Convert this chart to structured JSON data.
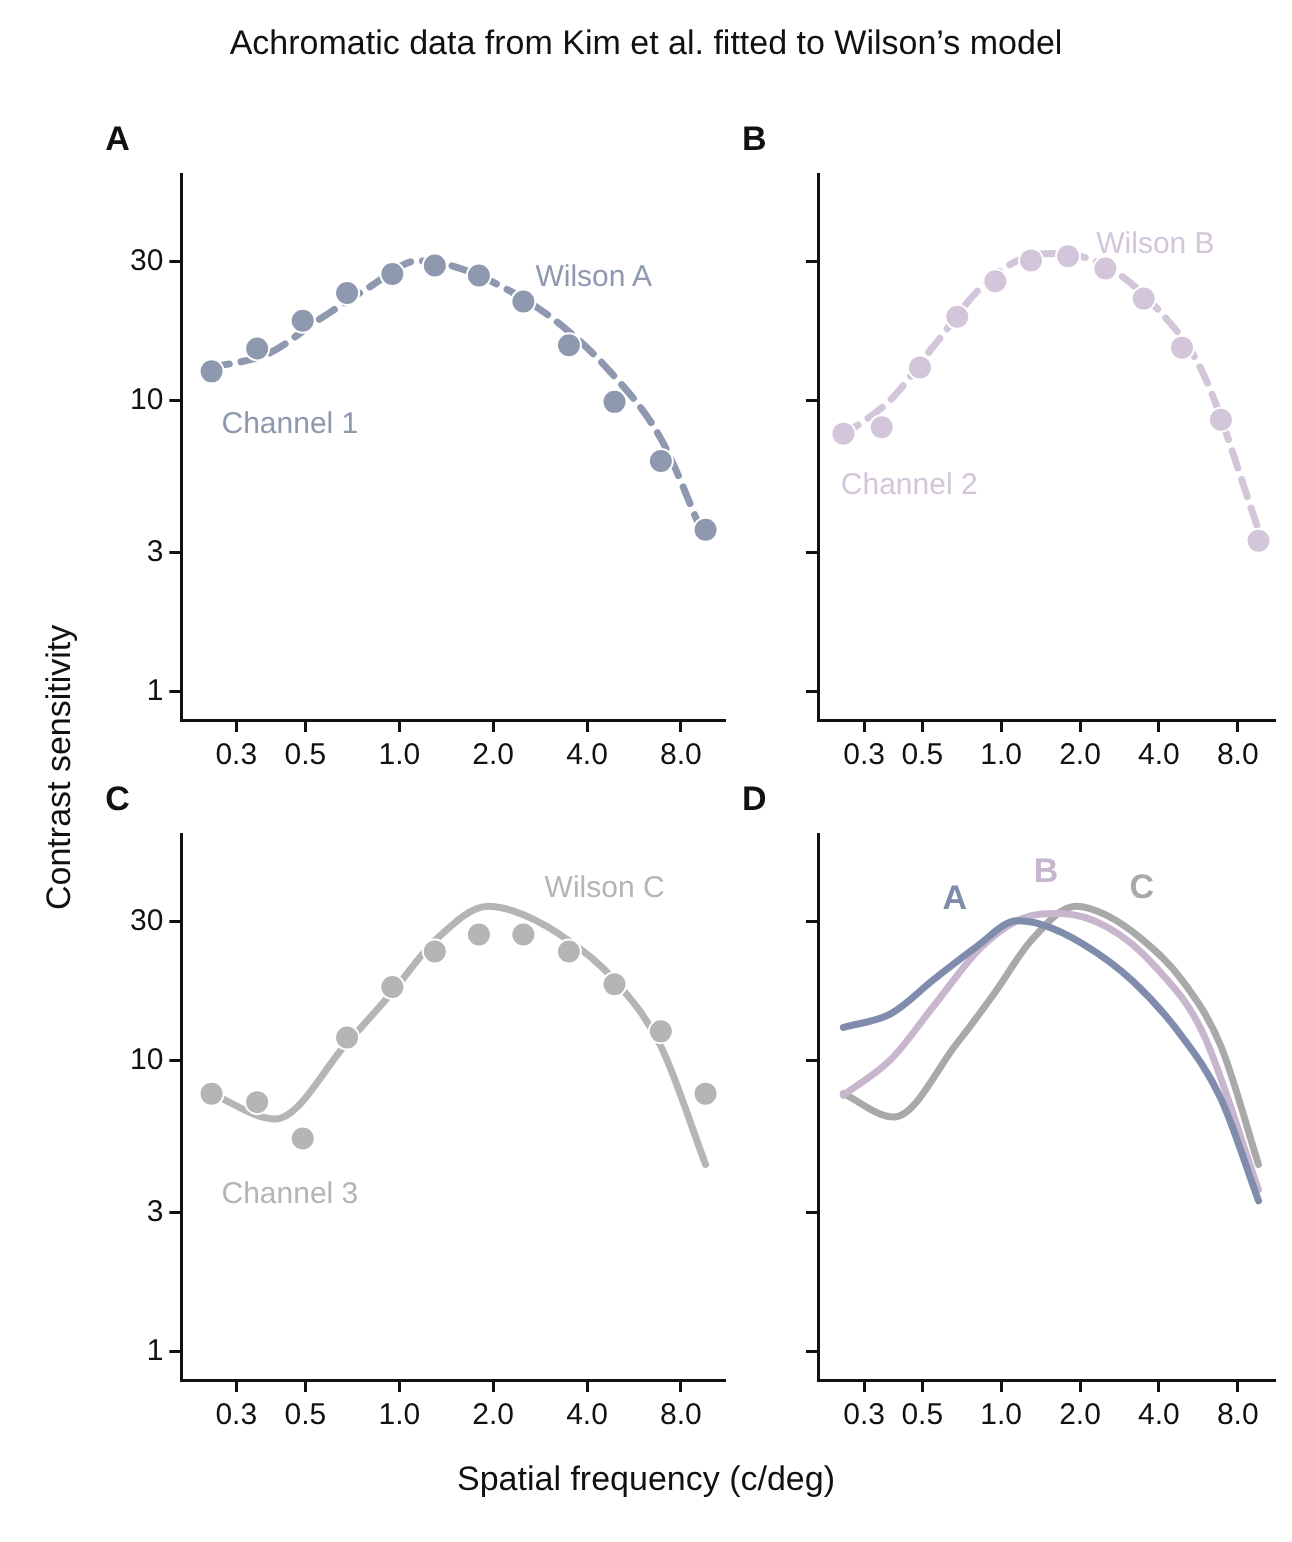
{
  "chart_data": [
    {
      "type": "line",
      "title": "A",
      "ylabel": "Contrast sensitivity",
      "annotations": [
        "Achromatic data from Kim et al. fitted to Wilson’s model"
      ],
      "log": "xy",
      "grid": false,
      "legend": false,
      "xlim": [
        0.2,
        11
      ],
      "ylim": [
        0.8,
        60
      ],
      "xticks": [
        {
          "value": 0.3,
          "label": "0.3"
        },
        {
          "value": 0.5,
          "label": "0.5"
        },
        {
          "value": 1,
          "label": "1.0"
        },
        {
          "value": 2,
          "label": "2.0"
        },
        {
          "value": 4,
          "label": "4.0"
        },
        {
          "value": 8,
          "label": "8.0"
        }
      ],
      "yticks": [
        1,
        3,
        10,
        30
      ],
      "series": [
        {
          "name": "Wilson A",
          "type": "line",
          "line_style": "dashed",
          "marker": "none",
          "color": "#8e99b0",
          "x": [
            0.25,
            0.38,
            0.55,
            0.8,
            1.15,
            1.43,
            2.06,
            3.15,
            4.8,
            6.9,
            9.6
          ],
          "values": [
            13.0,
            14.5,
            18.9,
            24.5,
            30.2,
            29.3,
            25.1,
            18.9,
            12.4,
            7.4,
            3.3
          ]
        },
        {
          "name": "Channel 1",
          "type": "scatter",
          "marker": "circle",
          "color": "#8e99b0",
          "x": [
            0.25,
            0.35,
            0.49,
            0.68,
            0.95,
            1.3,
            1.8,
            2.5,
            3.5,
            4.9,
            6.9,
            9.6
          ],
          "values": [
            12.6,
            15.1,
            18.8,
            23.4,
            27.2,
            29.1,
            26.9,
            21.9,
            15.5,
            9.9,
            6.2,
            3.6
          ]
        }
      ]
    },
    {
      "type": "line",
      "title": "B",
      "log": "xy",
      "grid": false,
      "legend": false,
      "tick_labels": "x",
      "xlim": [
        0.2,
        11
      ],
      "ylim": [
        0.8,
        60
      ],
      "xticks": [
        {
          "value": 0.3,
          "label": "0.3"
        },
        {
          "value": 0.5,
          "label": "0.5"
        },
        {
          "value": 1,
          "label": "1.0"
        },
        {
          "value": 2,
          "label": "2.0"
        },
        {
          "value": 4,
          "label": "4.0"
        },
        {
          "value": 8,
          "label": "8.0"
        }
      ],
      "yticks": [
        1,
        3,
        10,
        30
      ],
      "series": [
        {
          "name": "Wilson B",
          "type": "line",
          "line_style": "dashed",
          "marker": "none",
          "color": "#d3c6da",
          "x": [
            0.25,
            0.38,
            0.55,
            0.84,
            1.22,
            1.67,
            2.55,
            3.9,
            5.9,
            9.6
          ],
          "values": [
            7.6,
            10.1,
            15.3,
            24.5,
            30.9,
            32.0,
            28.7,
            20.9,
            12.4,
            3.6
          ]
        },
        {
          "name": "Channel 2",
          "type": "scatter",
          "marker": "circle",
          "color": "#d3c6da",
          "x": [
            0.25,
            0.35,
            0.49,
            0.68,
            0.95,
            1.3,
            1.8,
            2.5,
            3.5,
            4.9,
            6.9,
            9.6
          ],
          "values": [
            7.7,
            8.1,
            13.0,
            19.4,
            25.7,
            30.3,
            31.3,
            28.4,
            22.4,
            15.2,
            8.6,
            3.3
          ]
        }
      ]
    },
    {
      "type": "line",
      "title": "C",
      "xlabel": "Spatial frequency (c/deg)",
      "log": "xy",
      "grid": false,
      "legend": false,
      "xlim": [
        0.2,
        11
      ],
      "ylim": [
        0.8,
        60
      ],
      "xticks": [
        {
          "value": 0.3,
          "label": "0.3"
        },
        {
          "value": 0.5,
          "label": "0.5"
        },
        {
          "value": 1,
          "label": "1.0"
        },
        {
          "value": 2,
          "label": "2.0"
        },
        {
          "value": 4,
          "label": "4.0"
        },
        {
          "value": 8,
          "label": "8.0"
        }
      ],
      "yticks": [
        1,
        3,
        10,
        30
      ],
      "series": [
        {
          "name": "Wilson C",
          "type": "line",
          "line_style": "solid",
          "marker": "none",
          "color": "#b5b5b5",
          "x": [
            0.25,
            0.4,
            0.68,
            0.95,
            1.3,
            1.93,
            2.5,
            3.5,
            4.9,
            6.9,
            9.6
          ],
          "values": [
            7.7,
            6.3,
            11.5,
            17.2,
            25.8,
            33.9,
            31.7,
            25.8,
            18.9,
            11.2,
            4.4
          ]
        },
        {
          "name": "Channel 3",
          "type": "scatter",
          "marker": "circle",
          "color": "#b5b5b5",
          "x": [
            0.25,
            0.35,
            0.49,
            0.68,
            0.95,
            1.3,
            1.8,
            2.5,
            3.5,
            4.9,
            6.9,
            9.6
          ],
          "values": [
            7.7,
            7.2,
            5.4,
            12.0,
            17.9,
            23.7,
            27.1,
            27.1,
            23.7,
            18.3,
            12.6,
            7.7
          ]
        }
      ]
    },
    {
      "type": "line",
      "title": "D",
      "log": "xy",
      "grid": false,
      "legend": false,
      "tick_labels": "x",
      "xlim": [
        0.2,
        11
      ],
      "ylim": [
        0.8,
        60
      ],
      "xticks": [
        {
          "value": 0.3,
          "label": "0.3"
        },
        {
          "value": 0.5,
          "label": "0.5"
        },
        {
          "value": 1,
          "label": "1.0"
        },
        {
          "value": 2,
          "label": "2.0"
        },
        {
          "value": 4,
          "label": "4.0"
        },
        {
          "value": 8,
          "label": "8.0"
        }
      ],
      "yticks": [
        1,
        3,
        10,
        30
      ],
      "series": [
        {
          "name": "A",
          "type": "line",
          "line_style": "solid",
          "marker": "none",
          "color": "#7f8cab",
          "x": [
            0.25,
            0.38,
            0.55,
            0.8,
            1.15,
            1.43,
            2.06,
            3.15,
            4.8,
            6.9,
            9.6
          ],
          "values": [
            13.0,
            14.5,
            18.9,
            24.5,
            30.2,
            29.3,
            25.1,
            18.9,
            12.4,
            7.4,
            3.3
          ]
        },
        {
          "name": "B",
          "type": "line",
          "line_style": "solid",
          "marker": "none",
          "color": "#c8b6cf",
          "x": [
            0.25,
            0.38,
            0.55,
            0.84,
            1.22,
            1.67,
            2.55,
            3.9,
            5.9,
            9.6
          ],
          "values": [
            7.6,
            10.1,
            15.3,
            24.5,
            30.9,
            32.0,
            28.7,
            20.9,
            12.4,
            3.6
          ]
        },
        {
          "name": "C",
          "type": "line",
          "line_style": "solid",
          "marker": "none",
          "color": "#a9a9a9",
          "x": [
            0.25,
            0.39,
            0.68,
            0.95,
            1.3,
            1.93,
            2.5,
            3.5,
            4.9,
            6.9,
            9.6
          ],
          "values": [
            7.7,
            6.4,
            11.5,
            17.2,
            25.8,
            33.9,
            31.7,
            25.8,
            18.9,
            11.2,
            4.4
          ]
        }
      ]
    }
  ]
}
